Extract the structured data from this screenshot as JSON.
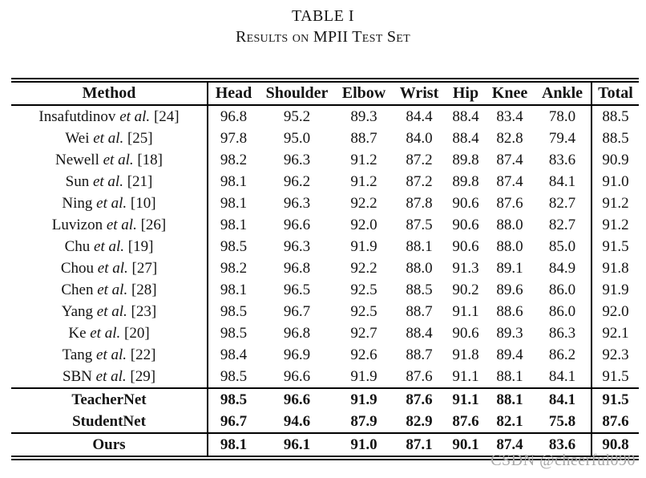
{
  "title": "TABLE I",
  "subtitle": "Results on MPII Test Set",
  "watermark": "CSDN @cheerful090",
  "table": {
    "columns": [
      "Method",
      "Head",
      "Shoulder",
      "Elbow",
      "Wrist",
      "Hip",
      "Knee",
      "Ankle",
      "Total"
    ],
    "rows": [
      {
        "name": "Insafutdinov",
        "etal": "et al.",
        "ref": "[24]",
        "bold": false,
        "rule_above": false,
        "values": [
          "96.8",
          "95.2",
          "89.3",
          "84.4",
          "88.4",
          "83.4",
          "78.0"
        ],
        "total": "88.5"
      },
      {
        "name": "Wei",
        "etal": "et al.",
        "ref": "[25]",
        "bold": false,
        "rule_above": false,
        "values": [
          "97.8",
          "95.0",
          "88.7",
          "84.0",
          "88.4",
          "82.8",
          "79.4"
        ],
        "total": "88.5"
      },
      {
        "name": "Newell",
        "etal": "et al.",
        "ref": "[18]",
        "bold": false,
        "rule_above": false,
        "values": [
          "98.2",
          "96.3",
          "91.2",
          "87.2",
          "89.8",
          "87.4",
          "83.6"
        ],
        "total": "90.9"
      },
      {
        "name": "Sun",
        "etal": "et al.",
        "ref": "[21]",
        "bold": false,
        "rule_above": false,
        "values": [
          "98.1",
          "96.2",
          "91.2",
          "87.2",
          "89.8",
          "87.4",
          "84.1"
        ],
        "total": "91.0"
      },
      {
        "name": "Ning",
        "etal": "et al.",
        "ref": "[10]",
        "bold": false,
        "rule_above": false,
        "values": [
          "98.1",
          "96.3",
          "92.2",
          "87.8",
          "90.6",
          "87.6",
          "82.7"
        ],
        "total": "91.2"
      },
      {
        "name": "Luvizon",
        "etal": "et al.",
        "ref": "[26]",
        "bold": false,
        "rule_above": false,
        "values": [
          "98.1",
          "96.6",
          "92.0",
          "87.5",
          "90.6",
          "88.0",
          "82.7"
        ],
        "total": "91.2"
      },
      {
        "name": "Chu",
        "etal": "et al.",
        "ref": "[19]",
        "bold": false,
        "rule_above": false,
        "values": [
          "98.5",
          "96.3",
          "91.9",
          "88.1",
          "90.6",
          "88.0",
          "85.0"
        ],
        "total": "91.5"
      },
      {
        "name": "Chou",
        "etal": "et al.",
        "ref": "[27]",
        "bold": false,
        "rule_above": false,
        "values": [
          "98.2",
          "96.8",
          "92.2",
          "88.0",
          "91.3",
          "89.1",
          "84.9"
        ],
        "total": "91.8"
      },
      {
        "name": "Chen",
        "etal": "et al.",
        "ref": "[28]",
        "bold": false,
        "rule_above": false,
        "values": [
          "98.1",
          "96.5",
          "92.5",
          "88.5",
          "90.2",
          "89.6",
          "86.0"
        ],
        "total": "91.9"
      },
      {
        "name": "Yang",
        "etal": "et al.",
        "ref": "[23]",
        "bold": false,
        "rule_above": false,
        "values": [
          "98.5",
          "96.7",
          "92.5",
          "88.7",
          "91.1",
          "88.6",
          "86.0"
        ],
        "total": "92.0"
      },
      {
        "name": "Ke",
        "etal": "et al.",
        "ref": "[20]",
        "bold": false,
        "rule_above": false,
        "values": [
          "98.5",
          "96.8",
          "92.7",
          "88.4",
          "90.6",
          "89.3",
          "86.3"
        ],
        "total": "92.1"
      },
      {
        "name": "Tang",
        "etal": "et al.",
        "ref": "[22]",
        "bold": false,
        "rule_above": false,
        "values": [
          "98.4",
          "96.9",
          "92.6",
          "88.7",
          "91.8",
          "89.4",
          "86.2"
        ],
        "total": "92.3"
      },
      {
        "name": "SBN",
        "etal": "et al.",
        "ref": "[29]",
        "bold": false,
        "rule_above": false,
        "values": [
          "98.5",
          "96.6",
          "91.9",
          "87.6",
          "91.1",
          "88.1",
          "84.1"
        ],
        "total": "91.5"
      },
      {
        "name": "TeacherNet",
        "etal": "",
        "ref": "",
        "bold": true,
        "rule_above": true,
        "values": [
          "98.5",
          "96.6",
          "91.9",
          "87.6",
          "91.1",
          "88.1",
          "84.1"
        ],
        "total": "91.5"
      },
      {
        "name": "StudentNet",
        "etal": "",
        "ref": "",
        "bold": true,
        "rule_above": false,
        "values": [
          "96.7",
          "94.6",
          "87.9",
          "82.9",
          "87.6",
          "82.1",
          "75.8"
        ],
        "total": "87.6"
      },
      {
        "name": "Ours",
        "etal": "",
        "ref": "",
        "bold": true,
        "rule_above": true,
        "values": [
          "98.1",
          "96.1",
          "91.0",
          "87.1",
          "90.1",
          "87.4",
          "83.6"
        ],
        "total": "90.8"
      }
    ]
  }
}
